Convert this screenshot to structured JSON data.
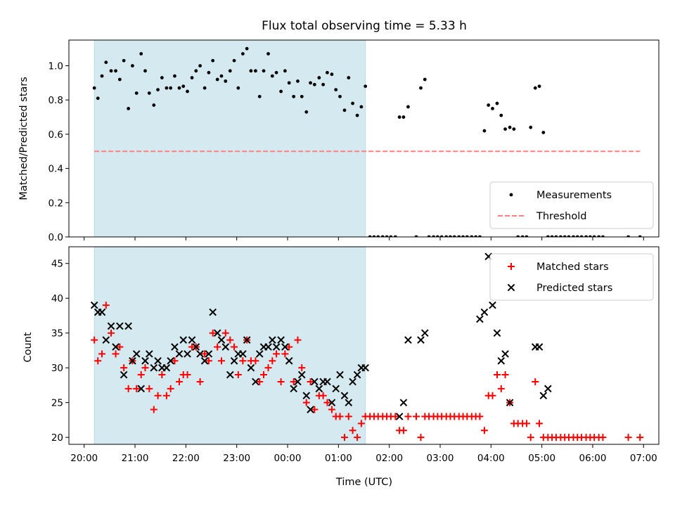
{
  "chart_data": {
    "type": "scatter",
    "title": "Flux total observing time = 5.33 h",
    "xlabel": "Time (UTC)",
    "x_ticks": [
      "20:00",
      "21:00",
      "22:00",
      "23:00",
      "00:00",
      "01:00",
      "02:00",
      "03:00",
      "04:00",
      "05:00",
      "06:00",
      "07:00"
    ],
    "x_start": "20:00",
    "x_range_hours": [
      -0.3,
      11.3
    ],
    "shaded_region_hours": [
      0.2,
      5.53
    ],
    "shade_color": "#d4eaf0",
    "panels": [
      {
        "ylabel": "Matched/Predicted stars",
        "ylim": [
          0,
          1.15
        ],
        "yticks": [
          0.0,
          0.2,
          0.4,
          0.6,
          0.8,
          1.0
        ],
        "ytick_labels": [
          "0.0",
          "0.2",
          "0.4",
          "0.6",
          "0.8",
          "1.0"
        ],
        "threshold": {
          "name": "Threshold",
          "value": 0.5,
          "x_range_hours": [
            0.2,
            10.93
          ],
          "color": "#ff8080"
        },
        "legend": {
          "position": "lower-right",
          "entries": [
            "Measurements",
            "Threshold"
          ]
        },
        "series": [
          {
            "name": "Measurements",
            "marker": "dot",
            "color": "#000000",
            "x_hours": [
              0.2,
              0.27,
              0.35,
              0.43,
              0.53,
              0.62,
              0.7,
              0.78,
              0.87,
              0.95,
              1.03,
              1.12,
              1.2,
              1.28,
              1.37,
              1.45,
              1.53,
              1.62,
              1.7,
              1.78,
              1.87,
              1.95,
              2.03,
              2.12,
              2.2,
              2.28,
              2.37,
              2.45,
              2.53,
              2.62,
              2.7,
              2.78,
              2.87,
              2.95,
              3.03,
              3.12,
              3.2,
              3.28,
              3.37,
              3.45,
              3.53,
              3.62,
              3.7,
              3.78,
              3.87,
              3.95,
              4.03,
              4.12,
              4.2,
              4.28,
              4.37,
              4.45,
              4.53,
              4.62,
              4.7,
              4.78,
              4.87,
              4.95,
              5.03,
              5.12,
              5.2,
              5.28,
              5.37,
              5.45,
              5.53,
              5.62,
              5.7,
              5.78,
              5.87,
              5.95,
              6.03,
              6.12,
              6.2,
              6.28,
              6.37,
              6.53,
              6.62,
              6.7,
              6.78,
              6.87,
              6.95,
              7.03,
              7.12,
              7.2,
              7.28,
              7.37,
              7.45,
              7.53,
              7.62,
              7.7,
              7.78,
              7.87,
              7.95,
              8.03,
              8.12,
              8.2,
              8.28,
              8.37,
              8.45,
              8.53,
              8.62,
              8.7,
              8.78,
              8.87,
              8.95,
              9.03,
              9.12,
              9.2,
              9.28,
              9.37,
              9.45,
              9.53,
              9.62,
              9.7,
              9.78,
              9.87,
              9.95,
              10.03,
              10.12,
              10.2,
              10.7,
              10.93
            ],
            "y": [
              0.87,
              0.81,
              0.94,
              1.02,
              0.97,
              0.97,
              0.92,
              1.03,
              0.75,
              1.0,
              0.84,
              1.07,
              0.97,
              0.84,
              0.77,
              0.86,
              0.93,
              0.87,
              0.87,
              0.94,
              0.87,
              0.88,
              0.85,
              0.93,
              0.97,
              1.0,
              0.87,
              0.96,
              1.03,
              0.92,
              0.94,
              0.91,
              0.97,
              1.03,
              0.87,
              1.07,
              1.1,
              0.97,
              0.97,
              0.82,
              0.97,
              1.07,
              0.94,
              0.96,
              0.85,
              0.97,
              0.9,
              0.82,
              0.91,
              0.82,
              0.73,
              0.9,
              0.89,
              0.93,
              0.89,
              0.96,
              0.95,
              0.86,
              0.82,
              0.74,
              0.93,
              0.78,
              0.71,
              0.76,
              0.88,
              0.0,
              0.0,
              0.0,
              0.0,
              0.0,
              0.0,
              0.0,
              0.7,
              0.7,
              0.76,
              0.0,
              0.87,
              0.92,
              0.0,
              0.0,
              0.0,
              0.0,
              0.0,
              0.0,
              0.0,
              0.0,
              0.0,
              0.0,
              0.0,
              0.0,
              0.0,
              0.62,
              0.77,
              0.75,
              0.78,
              0.71,
              0.63,
              0.64,
              0.63,
              0.0,
              0.0,
              0.0,
              0.64,
              0.87,
              0.88,
              0.61,
              0.0,
              0.0,
              0.0,
              0.0,
              0.0,
              0.0,
              0.0,
              0.0,
              0.0,
              0.0,
              0.0,
              0.0,
              0.0,
              0.0,
              0.0,
              0.0
            ]
          }
        ]
      },
      {
        "ylabel": "Count",
        "ylim": [
          19,
          47.4
        ],
        "yticks": [
          20,
          25,
          30,
          35,
          40,
          45
        ],
        "ytick_labels": [
          "20",
          "25",
          "30",
          "35",
          "40",
          "45"
        ],
        "legend": {
          "position": "top-right",
          "entries": [
            "Matched stars",
            "Predicted stars"
          ]
        },
        "series": [
          {
            "name": "Matched stars",
            "marker": "plus",
            "color": "#ff0000",
            "x_hours": [
              0.2,
              0.27,
              0.35,
              0.43,
              0.53,
              0.62,
              0.7,
              0.78,
              0.87,
              0.95,
              1.03,
              1.12,
              1.2,
              1.28,
              1.37,
              1.45,
              1.53,
              1.62,
              1.7,
              1.78,
              1.87,
              1.95,
              2.03,
              2.12,
              2.2,
              2.28,
              2.37,
              2.45,
              2.53,
              2.62,
              2.7,
              2.78,
              2.87,
              2.95,
              3.03,
              3.12,
              3.2,
              3.28,
              3.37,
              3.45,
              3.53,
              3.62,
              3.7,
              3.78,
              3.87,
              3.95,
              4.03,
              4.12,
              4.2,
              4.28,
              4.37,
              4.45,
              4.53,
              4.62,
              4.7,
              4.78,
              4.87,
              4.95,
              5.03,
              5.12,
              5.2,
              5.28,
              5.37,
              5.45,
              5.53,
              5.62,
              5.7,
              5.78,
              5.87,
              5.95,
              6.03,
              6.12,
              6.2,
              6.28,
              6.37,
              6.53,
              6.62,
              6.7,
              6.78,
              6.87,
              6.95,
              7.03,
              7.12,
              7.2,
              7.28,
              7.37,
              7.45,
              7.53,
              7.62,
              7.7,
              7.78,
              7.87,
              7.95,
              8.03,
              8.12,
              8.2,
              8.28,
              8.37,
              8.45,
              8.53,
              8.62,
              8.7,
              8.78,
              8.87,
              8.95,
              9.03,
              9.12,
              9.2,
              9.28,
              9.37,
              9.45,
              9.53,
              9.62,
              9.7,
              9.78,
              9.87,
              9.95,
              10.03,
              10.12,
              10.2,
              10.7,
              10.93
            ],
            "y": [
              34,
              31,
              32,
              39,
              35,
              32,
              33,
              30,
              27,
              31,
              27,
              29,
              30,
              27,
              24,
              26,
              29,
              26,
              27,
              31,
              28,
              29,
              29,
              33,
              33,
              28,
              32,
              31,
              35,
              33,
              31,
              35,
              34,
              33,
              29,
              31,
              34,
              31,
              31,
              28,
              29,
              30,
              31,
              32,
              28,
              32,
              33,
              28,
              34,
              30,
              25,
              28,
              24,
              26,
              26,
              25,
              24,
              23,
              23,
              20,
              23,
              21,
              20,
              22,
              23,
              23,
              23,
              23,
              23,
              23,
              23,
              23,
              21,
              21,
              23,
              23,
              20,
              23,
              23,
              23,
              23,
              23,
              23,
              23,
              23,
              23,
              23,
              23,
              23,
              23,
              23,
              21,
              26,
              26,
              29,
              27,
              29,
              25,
              22,
              22,
              22,
              22,
              20,
              28,
              22,
              20,
              20,
              20,
              20,
              20,
              20,
              20,
              20,
              20,
              20,
              20,
              20,
              20,
              20,
              20,
              20,
              20
            ]
          },
          {
            "name": "Predicted stars",
            "marker": "x",
            "color": "#000000",
            "x_hours": [
              0.2,
              0.27,
              0.35,
              0.43,
              0.53,
              0.62,
              0.7,
              0.78,
              0.87,
              0.95,
              1.03,
              1.12,
              1.2,
              1.28,
              1.37,
              1.45,
              1.53,
              1.62,
              1.7,
              1.78,
              1.87,
              1.95,
              2.03,
              2.12,
              2.2,
              2.28,
              2.37,
              2.45,
              2.53,
              2.62,
              2.7,
              2.78,
              2.87,
              2.95,
              3.03,
              3.12,
              3.2,
              3.28,
              3.37,
              3.45,
              3.53,
              3.62,
              3.7,
              3.78,
              3.87,
              3.95,
              4.03,
              4.12,
              4.2,
              4.28,
              4.37,
              4.45,
              4.53,
              4.62,
              4.7,
              4.78,
              4.87,
              4.95,
              5.03,
              5.12,
              5.2,
              5.28,
              5.37,
              5.45,
              5.53,
              6.2,
              6.28,
              6.37,
              6.62,
              6.7,
              7.78,
              7.87,
              7.95,
              8.03,
              8.12,
              8.2,
              8.28,
              8.37,
              8.87,
              8.95,
              9.03,
              9.12
            ],
            "y": [
              39,
              38,
              38,
              34,
              36,
              33,
              36,
              29,
              36,
              31,
              32,
              27,
              31,
              32,
              30,
              31,
              30,
              30,
              31,
              33,
              32,
              34,
              32,
              34,
              33,
              32,
              31,
              32,
              38,
              35,
              34,
              33,
              29,
              31,
              32,
              32,
              34,
              30,
              28,
              32,
              33,
              33,
              34,
              33,
              34,
              33,
              31,
              27,
              28,
              29,
              26,
              24,
              28,
              27,
              28,
              28,
              25,
              27,
              29,
              26,
              25,
              28,
              29,
              30,
              30,
              23,
              25,
              34,
              34,
              35,
              37,
              38,
              46,
              39,
              35,
              31,
              32,
              25,
              33,
              33,
              26,
              27
            ]
          }
        ]
      }
    ]
  }
}
